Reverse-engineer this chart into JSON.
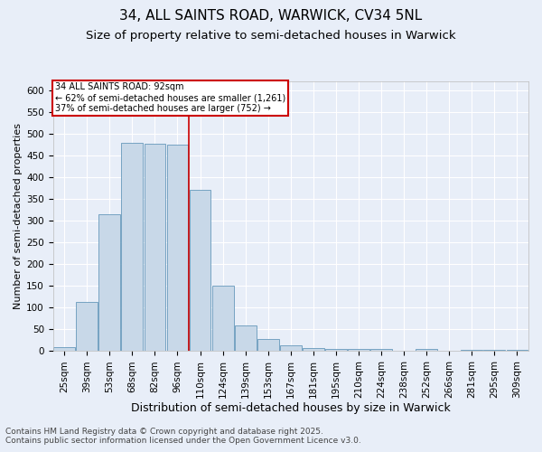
{
  "title1": "34, ALL SAINTS ROAD, WARWICK, CV34 5NL",
  "title2": "Size of property relative to semi-detached houses in Warwick",
  "xlabel": "Distribution of semi-detached houses by size in Warwick",
  "ylabel": "Number of semi-detached properties",
  "categories": [
    "25sqm",
    "39sqm",
    "53sqm",
    "68sqm",
    "82sqm",
    "96sqm",
    "110sqm",
    "124sqm",
    "139sqm",
    "153sqm",
    "167sqm",
    "181sqm",
    "195sqm",
    "210sqm",
    "224sqm",
    "238sqm",
    "252sqm",
    "266sqm",
    "281sqm",
    "295sqm",
    "309sqm"
  ],
  "values": [
    10,
    113,
    315,
    478,
    477,
    475,
    370,
    150,
    60,
    28,
    14,
    8,
    5,
    5,
    5,
    0,
    5,
    0,
    3,
    3,
    3
  ],
  "bar_color": "#c8d8e8",
  "bar_edge_color": "#6699bb",
  "vline_x": 5.5,
  "vline_color": "#cc0000",
  "annotation_text_line1": "34 ALL SAINTS ROAD: 92sqm",
  "annotation_text_line2": "← 62% of semi-detached houses are smaller (1,261)",
  "annotation_text_line3": "37% of semi-detached houses are larger (752) →",
  "footer1": "Contains HM Land Registry data © Crown copyright and database right 2025.",
  "footer2": "Contains public sector information licensed under the Open Government Licence v3.0.",
  "ylim": [
    0,
    620
  ],
  "yticks": [
    0,
    50,
    100,
    150,
    200,
    250,
    300,
    350,
    400,
    450,
    500,
    550,
    600
  ],
  "fig_bg_color": "#e8eef8",
  "plot_bg_color": "#e8eef8",
  "grid_color": "#ffffff",
  "title1_fontsize": 11,
  "title2_fontsize": 9.5,
  "xlabel_fontsize": 9,
  "ylabel_fontsize": 8,
  "tick_fontsize": 7.5,
  "footer_fontsize": 6.5
}
